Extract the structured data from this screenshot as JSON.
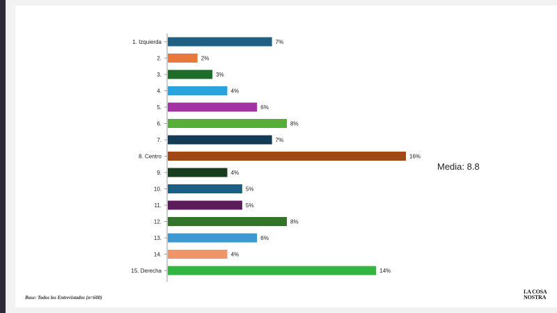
{
  "chart_data": {
    "type": "bar",
    "orientation": "horizontal",
    "categories": [
      "1. Izquierda",
      "2.",
      "3.",
      "4.",
      "5.",
      "6.",
      "7.",
      "8. Centro",
      "9.",
      "10.",
      "11.",
      "12.",
      "13.",
      "14.",
      "15. Derecha"
    ],
    "values": [
      7,
      2,
      3,
      4,
      6,
      8,
      7,
      16,
      4,
      5,
      5,
      8,
      6,
      4,
      14
    ],
    "value_labels": [
      "7%",
      "2%",
      "3%",
      "4%",
      "6%",
      "8%",
      "7%",
      "16%",
      "4%",
      "5%",
      "5%",
      "8%",
      "6%",
      "4%",
      "14%"
    ],
    "colors": [
      "#1f5f84",
      "#e8793a",
      "#1e6b2a",
      "#2aa3dc",
      "#a333a3",
      "#55b039",
      "#143c56",
      "#a04915",
      "#173d1d",
      "#1d5f82",
      "#5c1c5c",
      "#33742a",
      "#3c98cf",
      "#f0946a",
      "#33b542"
    ],
    "xlim": [
      0,
      16
    ],
    "grid": false,
    "legend": "none"
  },
  "annotation": "Media: 8.8",
  "footer": {
    "base_note": "Base: Todos los Entrevistados (n=600)",
    "logo_line1": "LA COSA",
    "logo_line2": "NOSTRA"
  }
}
